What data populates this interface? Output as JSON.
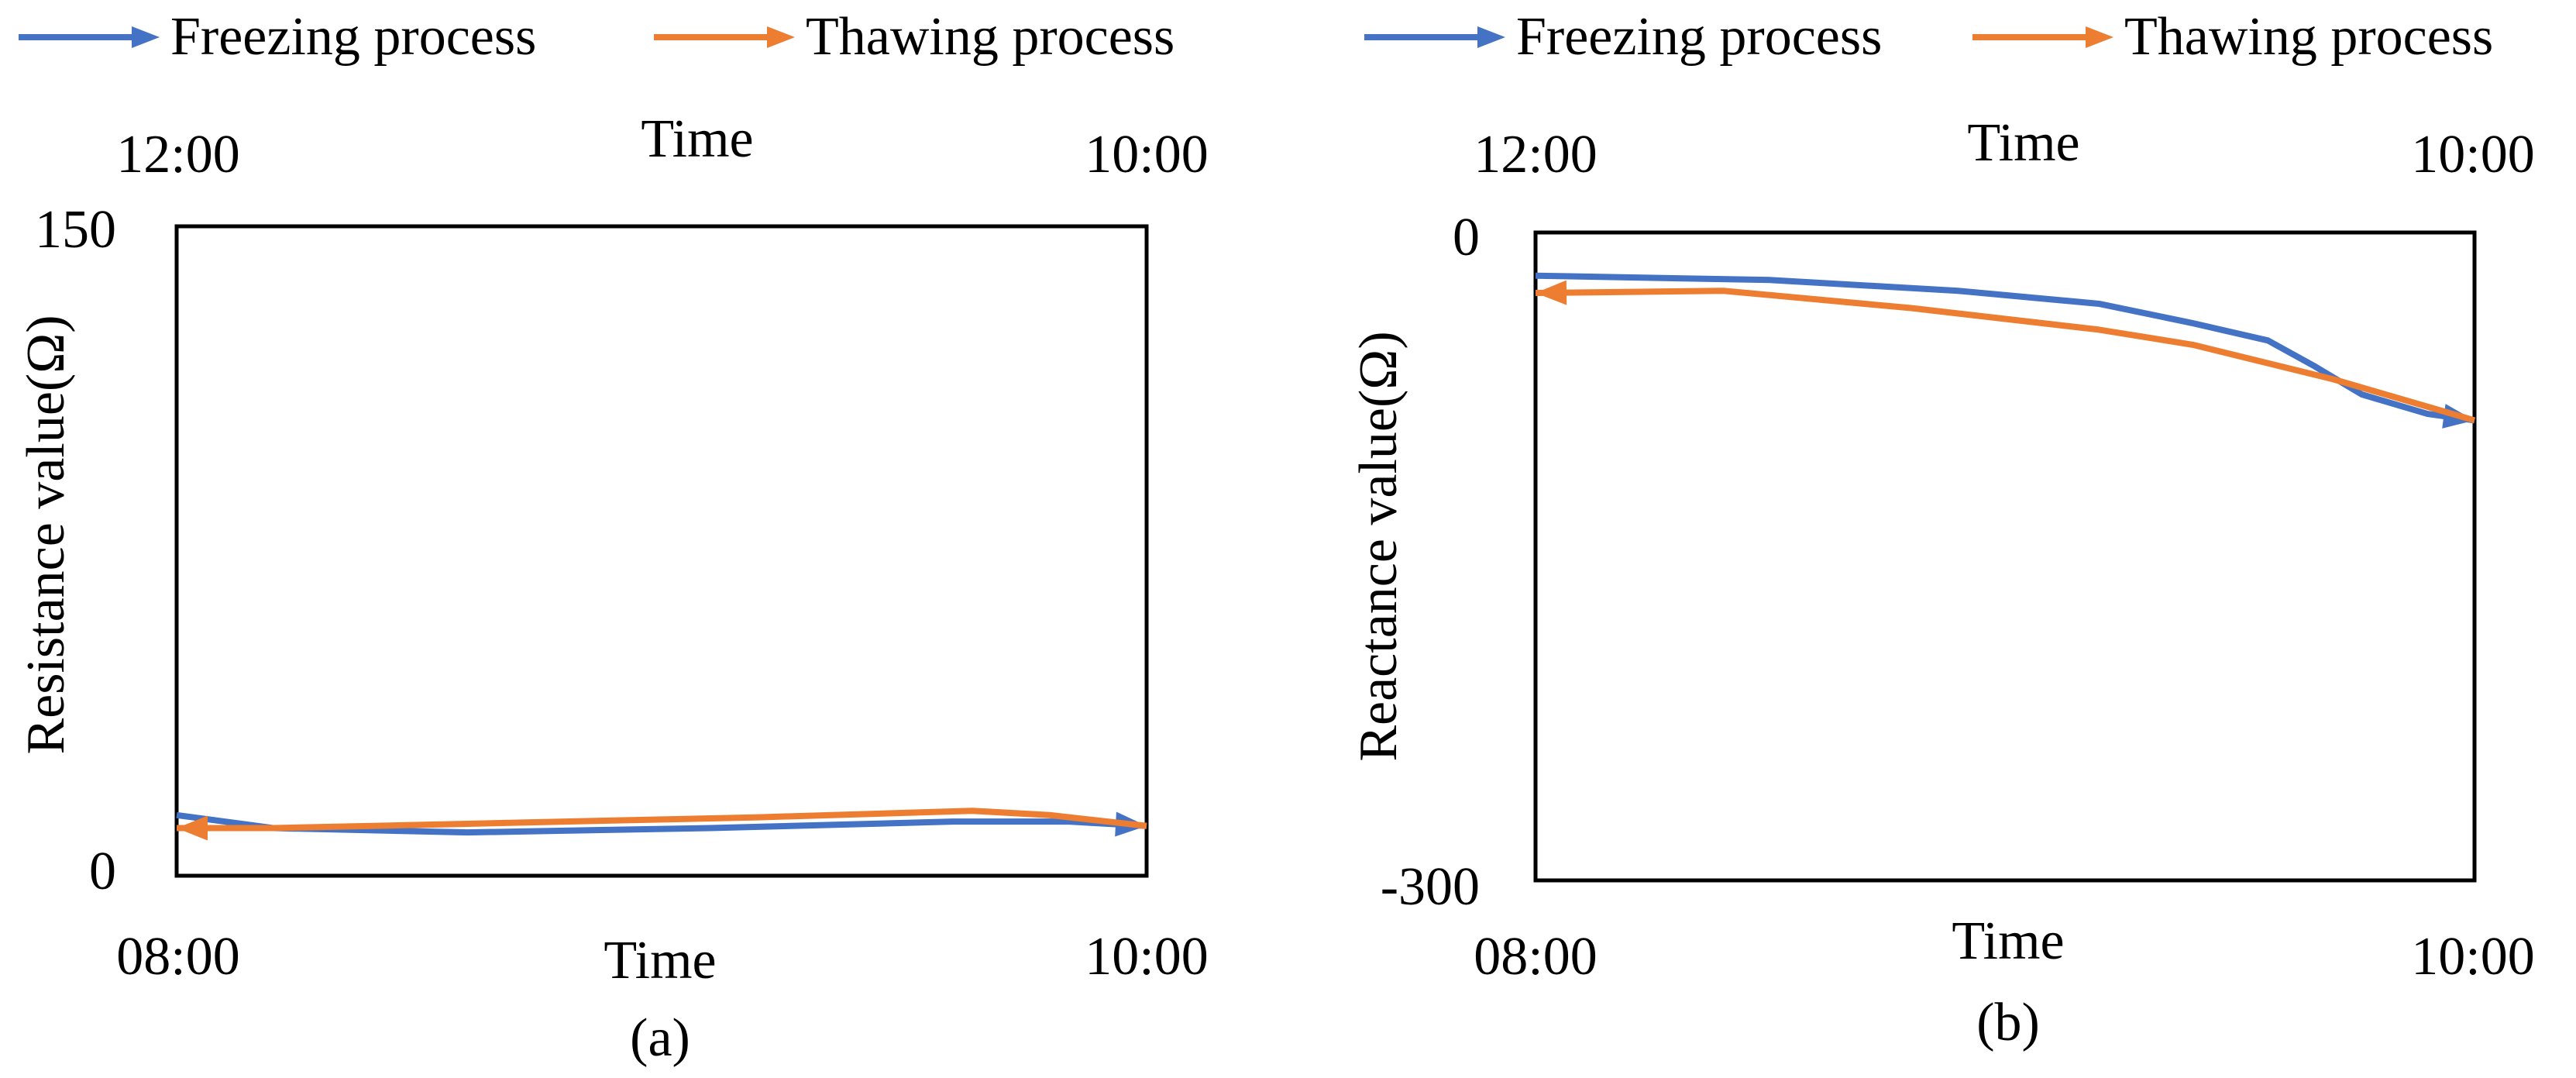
{
  "colors": {
    "freezing": "#4472C4",
    "thawing": "#ED7D31",
    "frame": "#000000"
  },
  "chart_data": [
    {
      "type": "line",
      "panel_label": "(a)",
      "legend": [
        "Freezing process",
        "Thawing process"
      ],
      "xlabel_top": "Time",
      "xlabel_bottom": "Time",
      "ylabel": "Resistance value(Ω)",
      "ylim": [
        0,
        150
      ],
      "ytick_labels": [
        "150",
        "0"
      ],
      "x_tick_bottom": [
        "08:00",
        "10:00"
      ],
      "x_tick_top": [
        "12:00",
        "10:00"
      ],
      "x_range": [
        0,
        1
      ],
      "series": [
        {
          "name": "Freezing process",
          "direction": "left-to-right",
          "x": [
            0,
            0.1,
            0.3,
            0.55,
            0.8,
            0.92,
            1.0
          ],
          "y": [
            14,
            11,
            10,
            11,
            12.5,
            12.5,
            11.5
          ]
        },
        {
          "name": "Thawing process",
          "direction": "right-to-left",
          "x": [
            1.0,
            0.9,
            0.82,
            0.6,
            0.3,
            0.1,
            0.0
          ],
          "y": [
            11.5,
            14,
            15,
            13.5,
            12,
            11,
            11
          ]
        }
      ]
    },
    {
      "type": "line",
      "panel_label": "(b)",
      "legend": [
        "Freezing process",
        "Thawing process"
      ],
      "xlabel_top": "Time",
      "xlabel_bottom": "Time",
      "ylabel": "Reactance value(Ω)",
      "ylim": [
        -300,
        0
      ],
      "ytick_labels": [
        "0",
        "-300"
      ],
      "x_tick_bottom": [
        "08:00",
        "10:00"
      ],
      "x_tick_top": [
        "12:00",
        "10:00"
      ],
      "x_range": [
        0,
        1
      ],
      "series": [
        {
          "name": "Freezing process",
          "direction": "left-to-right",
          "x": [
            0,
            0.25,
            0.45,
            0.6,
            0.7,
            0.78,
            0.83,
            0.88,
            0.95,
            1.0
          ],
          "y": [
            -20,
            -22,
            -27,
            -33,
            -42,
            -50,
            -62,
            -75,
            -84,
            -87
          ]
        },
        {
          "name": "Thawing process",
          "direction": "right-to-left",
          "x": [
            1.0,
            0.85,
            0.7,
            0.6,
            0.4,
            0.2,
            0.0
          ],
          "y": [
            -87,
            -68,
            -52,
            -45,
            -35,
            -27,
            -28
          ]
        }
      ]
    }
  ]
}
